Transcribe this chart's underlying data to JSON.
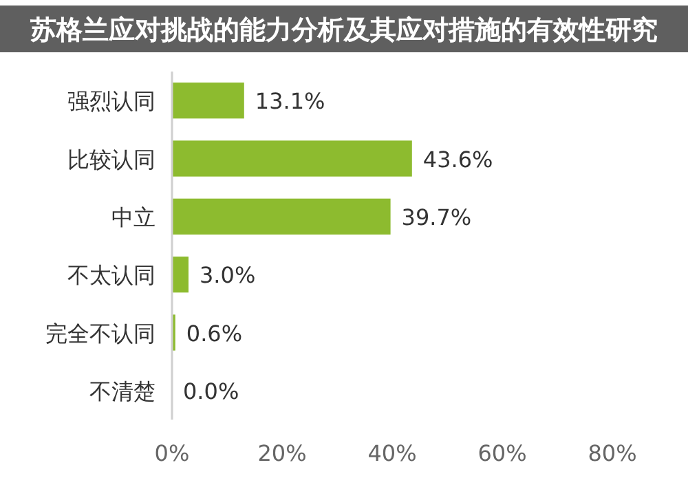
{
  "chart_data": {
    "type": "bar",
    "orientation": "horizontal",
    "title": "苏格兰应对挑战的能力分析及其应对措施的有效性研究",
    "categories": [
      "强烈认同",
      "比较认同",
      "中立",
      "不太认同",
      "完全不认同",
      "不清楚"
    ],
    "values": [
      13.1,
      43.6,
      39.7,
      3.0,
      0.6,
      0.0
    ],
    "value_labels": [
      "13.1%",
      "43.6%",
      "39.7%",
      "3.0%",
      "0.6%",
      "0.0%"
    ],
    "color": "#8dbb2f",
    "xlim": [
      0,
      80
    ],
    "xticks": [
      {
        "value": 0,
        "label": "0%"
      },
      {
        "value": 20,
        "label": "20%"
      },
      {
        "value": 40,
        "label": "40%"
      },
      {
        "value": 60,
        "label": "60%"
      },
      {
        "value": 80,
        "label": "80%"
      }
    ],
    "grid": false
  }
}
